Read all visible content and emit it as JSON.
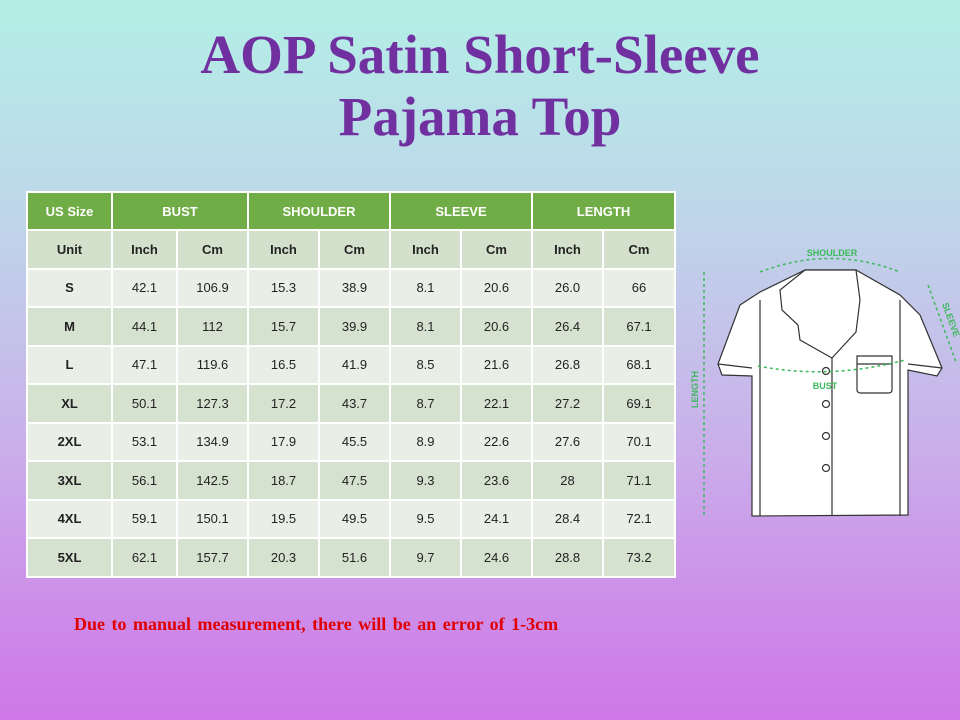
{
  "title": {
    "line1": "AOP Satin Short-Sleeve",
    "line2": "Pajama Top"
  },
  "table": {
    "header": [
      "US Size",
      "BUST",
      "SHOULDER",
      "SLEEVE",
      "LENGTH"
    ],
    "units": [
      "Unit",
      "Inch",
      "Cm",
      "Inch",
      "Cm",
      "Inch",
      "Cm",
      "Inch",
      "Cm"
    ],
    "rows": [
      [
        "S",
        "42.1",
        "106.9",
        "15.3",
        "38.9",
        "8.1",
        "20.6",
        "26.0",
        "66"
      ],
      [
        "M",
        "44.1",
        "112",
        "15.7",
        "39.9",
        "8.1",
        "20.6",
        "26.4",
        "67.1"
      ],
      [
        "L",
        "47.1",
        "119.6",
        "16.5",
        "41.9",
        "8.5",
        "21.6",
        "26.8",
        "68.1"
      ],
      [
        "XL",
        "50.1",
        "127.3",
        "17.2",
        "43.7",
        "8.7",
        "22.1",
        "27.2",
        "69.1"
      ],
      [
        "2XL",
        "53.1",
        "134.9",
        "17.9",
        "45.5",
        "8.9",
        "22.6",
        "27.6",
        "70.1"
      ],
      [
        "3XL",
        "56.1",
        "142.5",
        "18.7",
        "47.5",
        "9.3",
        "23.6",
        "28",
        "71.1"
      ],
      [
        "4XL",
        "59.1",
        "150.1",
        "19.5",
        "49.5",
        "9.5",
        "24.1",
        "28.4",
        "72.1"
      ],
      [
        "5XL",
        "62.1",
        "157.7",
        "20.3",
        "51.6",
        "9.7",
        "24.6",
        "28.8",
        "73.2"
      ]
    ]
  },
  "diagram": {
    "shoulder": "SHOULDER",
    "sleeve": "SLEEVE",
    "bust": "BUST",
    "length": "LENGTH"
  },
  "note": "Due to manual measurement, there will be an error of 1-3cm",
  "colors": {
    "title": "#7030a0",
    "header": "#70ad47",
    "note": "#e00000",
    "measure": "#3cb95a"
  }
}
